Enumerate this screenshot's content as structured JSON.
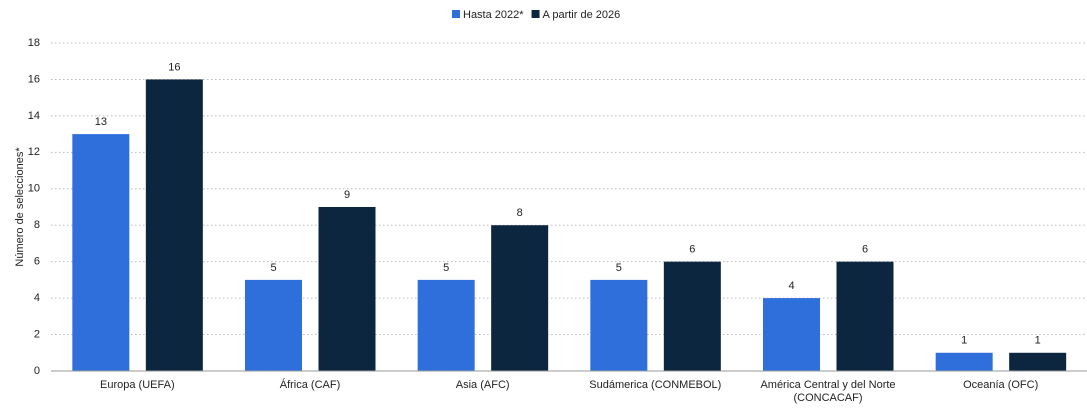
{
  "chart_data": {
    "type": "bar",
    "y_label": "Número de selecciones*",
    "categories": [
      "Europa (UEFA)",
      "África (CAF)",
      "Asia (AFC)",
      "Sudámerica (CONMEBOL)",
      "América Central y del Norte (CONCACAF)",
      "Oceanía (OFC)"
    ],
    "series": [
      {
        "name": "Hasta 2022*",
        "color": "#2e6fdc",
        "values": [
          13,
          5,
          5,
          5,
          4,
          1
        ]
      },
      {
        "name": "A partir de 2026",
        "color": "#0c2640",
        "values": [
          16,
          9,
          8,
          6,
          6,
          1
        ]
      }
    ],
    "ylim": [
      0,
      18
    ],
    "yticks": [
      0,
      2,
      4,
      6,
      8,
      10,
      12,
      14,
      16,
      18
    ],
    "grid": true,
    "legend": "top"
  }
}
